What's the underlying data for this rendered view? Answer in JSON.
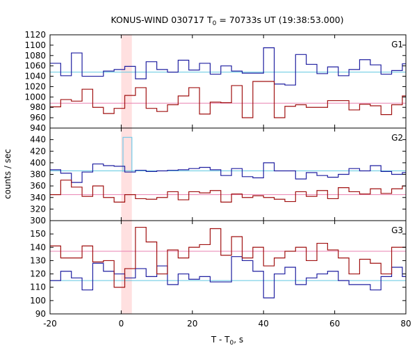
{
  "chart_data": {
    "type": "line",
    "title": "KONUS-WIND 030717 T",
    "title_sub": "0",
    "title_rest": " = 70733s UT (19:38:53.000)",
    "xlabel": "T - T",
    "xlabel_sub": "0",
    "xlabel_rest": ", s",
    "ylabel": "counts / sec",
    "xlim": [
      -20,
      80
    ],
    "x_ticks": [
      -20,
      0,
      20,
      40,
      60,
      80
    ],
    "highlight_band": [
      0,
      3
    ],
    "colors": {
      "blue_series": "#1f1fa0",
      "red_series": "#a01010",
      "blue_mean": "#5fc8e0",
      "red_mean": "#e880b0",
      "band": "#ffe0e0",
      "g2_spike": "#70c8e8"
    },
    "panels": [
      {
        "label": "G1",
        "ylim": [
          940,
          1120
        ],
        "y_ticks": [
          940,
          960,
          980,
          1000,
          1020,
          1040,
          1060,
          1080,
          1100,
          1120
        ],
        "bin_edges": [
          -20,
          -17,
          -14,
          -11,
          -8,
          -5,
          -2,
          1,
          4,
          7,
          10,
          13,
          16,
          19,
          22,
          25,
          28,
          31,
          34,
          37,
          40,
          43,
          46,
          49,
          52,
          55,
          58,
          61,
          64,
          67,
          70,
          73,
          76,
          79,
          82
        ],
        "series": [
          {
            "name": "",
            "role": "blue_series",
            "values": [
              1065,
              1041,
              1085,
              1040,
              1040,
              1050,
              1053,
              1059,
              1035,
              1068,
              1053,
              1048,
              1071,
              1052,
              1065,
              1044,
              1060,
              1050,
              1046,
              1046,
              1095,
              1025,
              1023,
              1082,
              1063,
              1045,
              1058,
              1041,
              1053,
              1072,
              1062,
              1044,
              1051,
              1064
            ]
          },
          {
            "name": "",
            "role": "red_series",
            "values": [
              981,
              995,
              992,
              1015,
              980,
              968,
              978,
              1003,
              1018,
              978,
              972,
              985,
              1002,
              1018,
              967,
              990,
              989,
              1022,
              960,
              1030,
              1030,
              960,
              982,
              985,
              980,
              980,
              993,
              993,
              975,
              986,
              983,
              966,
              985,
              1002
            ]
          }
        ],
        "means": [
          1048,
          988
        ],
        "spike": null
      },
      {
        "label": "G2",
        "ylim": [
          300,
          460
        ],
        "y_ticks": [
          300,
          320,
          340,
          360,
          380,
          400,
          420,
          440,
          460
        ],
        "bin_edges": [
          -20,
          -17,
          -14,
          -11,
          -8,
          -5,
          -2,
          1,
          4,
          7,
          10,
          13,
          16,
          19,
          22,
          25,
          28,
          31,
          34,
          37,
          40,
          43,
          46,
          49,
          52,
          55,
          58,
          61,
          64,
          67,
          70,
          73,
          76,
          79,
          82
        ],
        "series": [
          {
            "name": "",
            "role": "blue_series",
            "values": [
              388,
              382,
              366,
              384,
              398,
              395,
              394,
              384,
              387,
              385,
              386,
              387,
              388,
              390,
              392,
              388,
              378,
              390,
              376,
              374,
              400,
              386,
              386,
              372,
              383,
              378,
              375,
              380,
              390,
              386,
              395,
              385,
              380,
              383
            ]
          },
          {
            "name": "",
            "role": "red_series",
            "values": [
              345,
              370,
              358,
              342,
              360,
              340,
              332,
              345,
              338,
              337,
              340,
              350,
              336,
              350,
              348,
              352,
              332,
              346,
              340,
              343,
              340,
              337,
              333,
              350,
              342,
              352,
              338,
              357,
              350,
              346,
              355,
              347,
              355,
              360
            ]
          }
        ],
        "means": [
          386,
          345
        ],
        "spike": {
          "x0": 0.5,
          "x1": 3,
          "value": 444
        }
      },
      {
        "label": "G3",
        "ylim": [
          90,
          160
        ],
        "y_ticks": [
          90,
          100,
          110,
          120,
          130,
          140,
          150
        ],
        "bin_edges": [
          -20,
          -17,
          -14,
          -11,
          -8,
          -5,
          -2,
          1,
          4,
          7,
          10,
          13,
          16,
          19,
          22,
          25,
          28,
          31,
          34,
          37,
          40,
          43,
          46,
          49,
          52,
          55,
          58,
          61,
          64,
          67,
          70,
          73,
          76,
          79,
          82
        ],
        "series": [
          {
            "name": "",
            "role": "blue_series",
            "values": [
              115,
              122,
              117,
              108,
              128,
              122,
              120,
              117,
              124,
              118,
              126,
              112,
              120,
              116,
              118,
              114,
              114,
              133,
              130,
              122,
              102,
              120,
              125,
              112,
              117,
              120,
              122,
              115,
              112,
              112,
              108,
              118,
              125,
              118
            ]
          },
          {
            "name": "",
            "role": "red_series",
            "values": [
              141,
              132,
              132,
              141,
              129,
              130,
              110,
              124,
              155,
              144,
              120,
              138,
              132,
              140,
              142,
              154,
              134,
              148,
              132,
              140,
              126,
              132,
              137,
              140,
              130,
              143,
              138,
              132,
              120,
              131,
              128,
              120,
              140,
              140
            ]
          }
        ],
        "means": [
          115,
          137
        ],
        "spike": null
      }
    ]
  }
}
